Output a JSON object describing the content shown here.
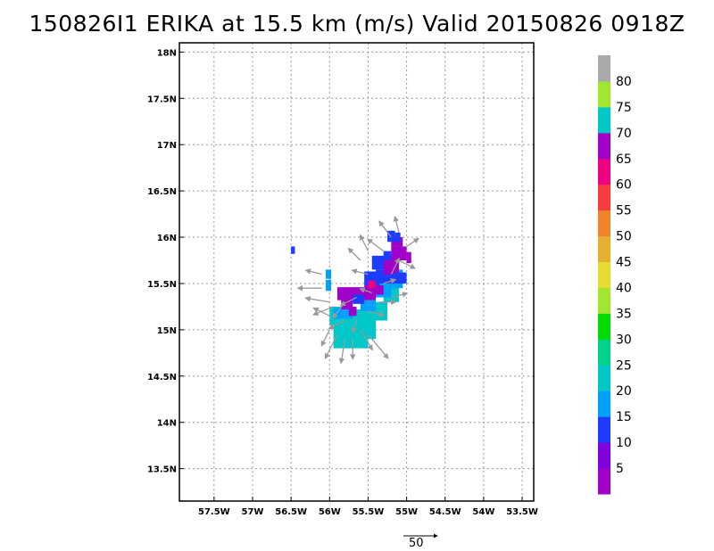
{
  "chart_data": {
    "type": "heatmap",
    "title": "150826I1 ERIKA at 15.5 km (m/s) Valid 20150826 0918Z",
    "xlim": [
      -57.95,
      -53.35
    ],
    "ylim": [
      13.15,
      18.1
    ],
    "grid": true,
    "x_ticks": [
      {
        "v": -57.5,
        "label": "57.5W"
      },
      {
        "v": -57.0,
        "label": "57W"
      },
      {
        "v": -56.5,
        "label": "56.5W"
      },
      {
        "v": -56.0,
        "label": "56W"
      },
      {
        "v": -55.5,
        "label": "55.5W"
      },
      {
        "v": -55.0,
        "label": "55W"
      },
      {
        "v": -54.5,
        "label": "54.5W"
      },
      {
        "v": -54.0,
        "label": "54W"
      },
      {
        "v": -53.5,
        "label": "53.5W"
      }
    ],
    "y_ticks": [
      {
        "v": 13.5,
        "label": "13.5N"
      },
      {
        "v": 14.0,
        "label": "14N"
      },
      {
        "v": 14.5,
        "label": "14.5N"
      },
      {
        "v": 15.0,
        "label": "15N"
      },
      {
        "v": 15.5,
        "label": "15.5N"
      },
      {
        "v": 16.0,
        "label": "16N"
      },
      {
        "v": 16.5,
        "label": "16.5N"
      },
      {
        "v": 17.0,
        "label": "17N"
      },
      {
        "v": 17.5,
        "label": "17.5N"
      },
      {
        "v": 18.0,
        "label": "18N"
      }
    ],
    "colorbar": {
      "labels": [
        "5",
        "10",
        "15",
        "20",
        "25",
        "30",
        "35",
        "40",
        "45",
        "50",
        "55",
        "60",
        "65",
        "70",
        "75",
        "80"
      ],
      "colors": [
        "#a000c8",
        "#8200dc",
        "#1e3cff",
        "#00a0ff",
        "#00c8c8",
        "#00d28c",
        "#00dc00",
        "#a0e632",
        "#e6dc32",
        "#e6af2d",
        "#f08228",
        "#fa3c3c",
        "#f00082",
        "#a000c8",
        "#00c8c8",
        "#a0e632",
        "#aaaaaa"
      ]
    },
    "cells": [
      {
        "lon": -56.5,
        "lat": 15.82,
        "w": 0.05,
        "h": 0.08,
        "color": "#1e3cff"
      },
      {
        "lon": -56.05,
        "lat": 15.55,
        "w": 0.07,
        "h": 0.1,
        "color": "#00a0ff"
      },
      {
        "lon": -56.05,
        "lat": 15.42,
        "w": 0.07,
        "h": 0.12,
        "color": "#00a0ff"
      },
      {
        "lon": -55.95,
        "lat": 14.8,
        "w": 0.45,
        "h": 0.42,
        "color": "#00c8c8"
      },
      {
        "lon": -56.0,
        "lat": 15.05,
        "w": 0.2,
        "h": 0.2,
        "color": "#00c8c8"
      },
      {
        "lon": -55.65,
        "lat": 14.9,
        "w": 0.25,
        "h": 0.32,
        "color": "#00c8c8"
      },
      {
        "lon": -55.45,
        "lat": 15.1,
        "w": 0.2,
        "h": 0.2,
        "color": "#00c8c8"
      },
      {
        "lon": -55.3,
        "lat": 15.3,
        "w": 0.2,
        "h": 0.2,
        "color": "#00c8c8"
      },
      {
        "lon": -55.95,
        "lat": 15.12,
        "w": 0.25,
        "h": 0.12,
        "color": "#00a0ff"
      },
      {
        "lon": -55.6,
        "lat": 15.2,
        "w": 0.2,
        "h": 0.12,
        "color": "#00a0ff"
      },
      {
        "lon": -55.4,
        "lat": 15.35,
        "w": 0.2,
        "h": 0.15,
        "color": "#00a0ff"
      },
      {
        "lon": -55.2,
        "lat": 15.45,
        "w": 0.15,
        "h": 0.2,
        "color": "#00a0ff"
      },
      {
        "lon": -55.9,
        "lat": 15.32,
        "w": 0.5,
        "h": 0.14,
        "color": "#a000c8"
      },
      {
        "lon": -55.85,
        "lat": 15.22,
        "w": 0.15,
        "h": 0.12,
        "color": "#a000c8"
      },
      {
        "lon": -55.55,
        "lat": 15.38,
        "w": 0.25,
        "h": 0.1,
        "color": "#a000c8"
      },
      {
        "lon": -55.55,
        "lat": 15.48,
        "w": 0.2,
        "h": 0.15,
        "color": "#1e3cff"
      },
      {
        "lon": -55.4,
        "lat": 15.5,
        "w": 0.25,
        "h": 0.15,
        "color": "#1e3cff"
      },
      {
        "lon": -55.45,
        "lat": 15.65,
        "w": 0.2,
        "h": 0.15,
        "color": "#1e3cff"
      },
      {
        "lon": -55.3,
        "lat": 15.6,
        "w": 0.2,
        "h": 0.2,
        "color": "#a000c8"
      },
      {
        "lon": -55.2,
        "lat": 15.75,
        "w": 0.2,
        "h": 0.15,
        "color": "#a000c8"
      },
      {
        "lon": -55.2,
        "lat": 15.9,
        "w": 0.15,
        "h": 0.1,
        "color": "#a000c8"
      },
      {
        "lon": -55.3,
        "lat": 15.75,
        "w": 0.1,
        "h": 0.1,
        "color": "#1e3cff"
      },
      {
        "lon": -55.25,
        "lat": 15.95,
        "w": 0.1,
        "h": 0.12,
        "color": "#1e3cff"
      },
      {
        "lon": -55.15,
        "lat": 15.95,
        "w": 0.07,
        "h": 0.1,
        "color": "#1e3cff"
      },
      {
        "lon": -55.0,
        "lat": 15.72,
        "w": 0.06,
        "h": 0.12,
        "color": "#a000c8"
      },
      {
        "lon": -55.15,
        "lat": 15.5,
        "w": 0.15,
        "h": 0.12,
        "color": "#1e3cff"
      },
      {
        "lon": -55.7,
        "lat": 15.28,
        "w": 0.15,
        "h": 0.1,
        "color": "#1e3cff"
      },
      {
        "lon": -55.75,
        "lat": 15.15,
        "w": 0.1,
        "h": 0.1,
        "color": "#a000c8"
      },
      {
        "lon": -55.5,
        "lat": 15.45,
        "w": 0.1,
        "h": 0.08,
        "color": "#f00082"
      }
    ],
    "vectors": [
      {
        "lon": -56.1,
        "lat": 15.45,
        "u": -30,
        "v": 0
      },
      {
        "lon": -56.1,
        "lat": 15.6,
        "u": -20,
        "v": 5
      },
      {
        "lon": -56.0,
        "lat": 15.3,
        "u": -30,
        "v": 5
      },
      {
        "lon": -56.0,
        "lat": 15.15,
        "u": -20,
        "v": 10
      },
      {
        "lon": -56.0,
        "lat": 15.0,
        "u": -10,
        "v": -20
      },
      {
        "lon": -55.9,
        "lat": 14.95,
        "u": -15,
        "v": -30
      },
      {
        "lon": -55.8,
        "lat": 14.9,
        "u": -5,
        "v": -30
      },
      {
        "lon": -55.7,
        "lat": 14.9,
        "u": 0,
        "v": -25
      },
      {
        "lon": -55.6,
        "lat": 15.0,
        "u": 15,
        "v": -25
      },
      {
        "lon": -55.5,
        "lat": 14.95,
        "u": 25,
        "v": -30
      },
      {
        "lon": -55.8,
        "lat": 15.1,
        "u": -20,
        "v": -10
      },
      {
        "lon": -55.65,
        "lat": 15.1,
        "u": -5,
        "v": -15
      },
      {
        "lon": -55.5,
        "lat": 15.2,
        "u": 20,
        "v": -5
      },
      {
        "lon": -55.35,
        "lat": 15.3,
        "u": 20,
        "v": 0
      },
      {
        "lon": -55.2,
        "lat": 15.35,
        "u": 20,
        "v": 5
      },
      {
        "lon": -55.3,
        "lat": 15.5,
        "u": 15,
        "v": 5
      },
      {
        "lon": -55.5,
        "lat": 15.6,
        "u": -20,
        "v": 5
      },
      {
        "lon": -55.6,
        "lat": 15.75,
        "u": -15,
        "v": 15
      },
      {
        "lon": -55.5,
        "lat": 15.85,
        "u": -10,
        "v": 20
      },
      {
        "lon": -55.3,
        "lat": 15.85,
        "u": -20,
        "v": 15
      },
      {
        "lon": -55.2,
        "lat": 16.0,
        "u": -15,
        "v": 20
      },
      {
        "lon": -55.1,
        "lat": 16.05,
        "u": -5,
        "v": 20
      },
      {
        "lon": -55.0,
        "lat": 15.9,
        "u": 15,
        "v": 10
      },
      {
        "lon": -55.1,
        "lat": 15.75,
        "u": 20,
        "v": -10
      },
      {
        "lon": -55.2,
        "lat": 15.6,
        "u": 10,
        "v": 20
      },
      {
        "lon": -55.45,
        "lat": 15.4,
        "u": -15,
        "v": 5
      },
      {
        "lon": -55.65,
        "lat": 15.35,
        "u": -20,
        "v": -10
      },
      {
        "lon": -55.8,
        "lat": 15.3,
        "u": -15,
        "v": -20
      },
      {
        "lon": -55.95,
        "lat": 15.25,
        "u": -25,
        "v": -10
      }
    ],
    "reference_vector": {
      "label": "50",
      "value": 50
    }
  }
}
